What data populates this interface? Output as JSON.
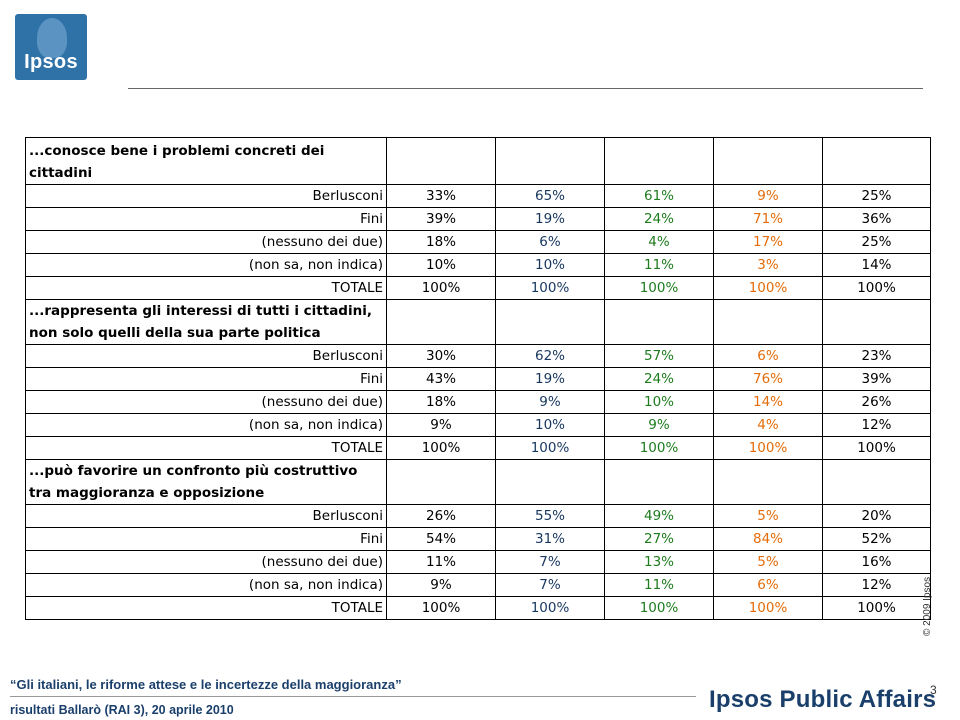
{
  "logo": {
    "text": "Ipsos"
  },
  "sections": [
    {
      "title": "...conosce bene i problemi concreti dei cittadini",
      "rows": [
        {
          "label": "Berlusconi",
          "values": [
            "33%",
            "65%",
            "61%",
            "9%",
            "25%"
          ]
        },
        {
          "label": "Fini",
          "values": [
            "39%",
            "19%",
            "24%",
            "71%",
            "36%"
          ]
        },
        {
          "label": "(nessuno dei due)",
          "values": [
            "18%",
            "6%",
            "4%",
            "17%",
            "25%"
          ]
        },
        {
          "label": "(non sa, non indica)",
          "values": [
            "10%",
            "10%",
            "11%",
            "3%",
            "14%"
          ]
        },
        {
          "label": "TOTALE",
          "values": [
            "100%",
            "100%",
            "100%",
            "100%",
            "100%"
          ]
        }
      ]
    },
    {
      "title": "...rappresenta gli interessi di tutti i cittadini, non solo quelli della sua parte politica",
      "rows": [
        {
          "label": "Berlusconi",
          "values": [
            "30%",
            "62%",
            "57%",
            "6%",
            "23%"
          ]
        },
        {
          "label": "Fini",
          "values": [
            "43%",
            "19%",
            "24%",
            "76%",
            "39%"
          ]
        },
        {
          "label": "(nessuno dei due)",
          "values": [
            "18%",
            "9%",
            "10%",
            "14%",
            "26%"
          ]
        },
        {
          "label": "(non sa, non indica)",
          "values": [
            "9%",
            "10%",
            "9%",
            "4%",
            "12%"
          ]
        },
        {
          "label": "TOTALE",
          "values": [
            "100%",
            "100%",
            "100%",
            "100%",
            "100%"
          ]
        }
      ]
    },
    {
      "title": "...può favorire un confronto più costruttivo tra maggioranza e opposizione",
      "rows": [
        {
          "label": "Berlusconi",
          "values": [
            "26%",
            "55%",
            "49%",
            "5%",
            "20%"
          ]
        },
        {
          "label": "Fini",
          "values": [
            "54%",
            "31%",
            "27%",
            "84%",
            "52%"
          ]
        },
        {
          "label": "(nessuno dei due)",
          "values": [
            "11%",
            "7%",
            "13%",
            "5%",
            "16%"
          ]
        },
        {
          "label": "(non sa, non indica)",
          "values": [
            "9%",
            "7%",
            "11%",
            "6%",
            "12%"
          ]
        },
        {
          "label": "TOTALE",
          "values": [
            "100%",
            "100%",
            "100%",
            "100%",
            "100%"
          ]
        }
      ]
    }
  ],
  "column_colors": [
    "#000000",
    "#17375e",
    "#1e7b1e",
    "#e46c0a",
    "#000000"
  ],
  "copyright": "© 2009 Ipsos",
  "page_number": "3",
  "footer": {
    "title": "“Gli italiani, le riforme attese e le incertezze della maggioranza”",
    "subtitle": "risultati Ballarò (RAI 3), 20 aprile 2010",
    "brand": "Ipsos Public Affairs"
  }
}
